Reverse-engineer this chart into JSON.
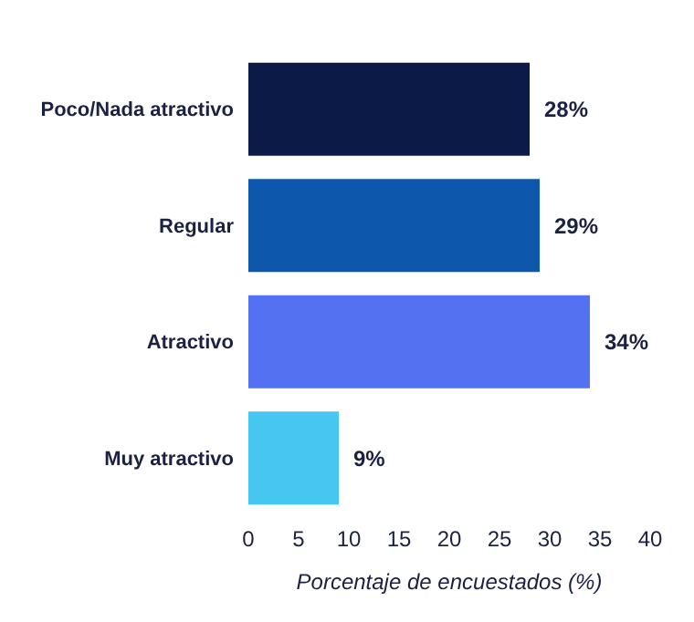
{
  "chart_data": {
    "type": "bar",
    "orientation": "horizontal",
    "categories": [
      "Poco/Nada atractivo",
      "Regular",
      "Atractivo",
      "Muy atractivo"
    ],
    "values": [
      28,
      29,
      34,
      9
    ],
    "colors": [
      "#0b1a47",
      "#0d57ad",
      "#5371f0",
      "#45c7f2"
    ],
    "value_labels": [
      "28%",
      "29%",
      "34%",
      "9%"
    ],
    "xlim": [
      0,
      40
    ],
    "xticks": [
      0,
      5,
      10,
      15,
      20,
      25,
      30,
      35,
      40
    ],
    "xlabel": "Porcentaje de encuestados (%)",
    "grid": false
  }
}
